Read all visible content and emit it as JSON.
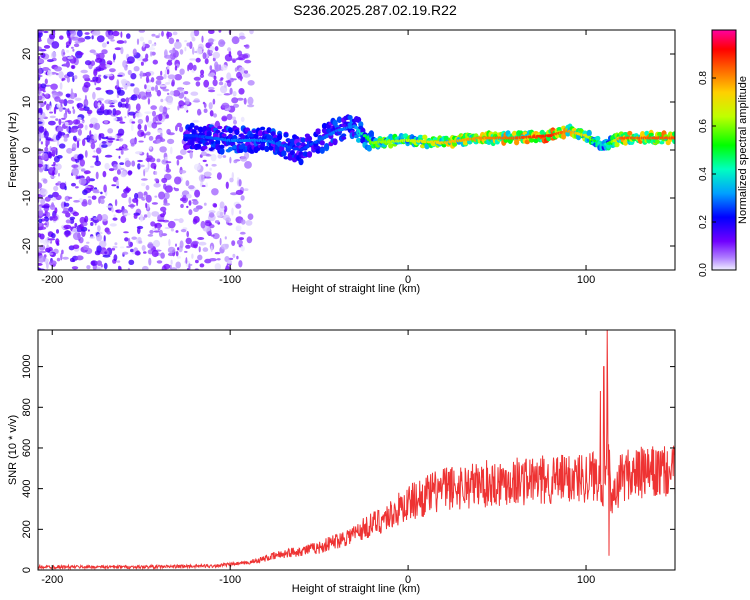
{
  "title": "S236.2025.287.02.19.R22",
  "chart_data": [
    {
      "type": "heatmap",
      "name": "spectrogram",
      "xlabel": "Height of straight line (km)",
      "ylabel": "Frequency (Hz)",
      "xlim": [
        -208,
        150
      ],
      "ylim": [
        -25,
        25
      ],
      "xticks": [
        -200,
        -100,
        0,
        100
      ],
      "xtick_labels": [
        "-200",
        "-100",
        "0",
        "100"
      ],
      "yticks": [
        -20,
        -10,
        0,
        10,
        20
      ],
      "ytick_labels": [
        "-20",
        "-10",
        "0",
        "10",
        "20"
      ],
      "colorbar": {
        "label": "Normalized spectral amplitude",
        "range": [
          0,
          1
        ],
        "ticks": [
          0.0,
          0.2,
          0.4,
          0.6,
          0.8
        ],
        "tick_labels": [
          "0.0",
          "0.2",
          "0.4",
          "0.6",
          "0.8"
        ],
        "colors": [
          "#f0f0ff",
          "#8000ff",
          "#0000ff",
          "#00c0ff",
          "#00ff80",
          "#80ff00",
          "#ffff00",
          "#ff8000",
          "#ff0000",
          "#ff0080"
        ]
      },
      "signal_track": {
        "x": [
          -120,
          -100,
          -80,
          -60,
          -40,
          -30,
          -20,
          0,
          20,
          40,
          60,
          80,
          90,
          100,
          110,
          120,
          150
        ],
        "freq": [
          3,
          2,
          2,
          0,
          4,
          5,
          1.5,
          2,
          1.5,
          2.5,
          2.5,
          3,
          4,
          3,
          1,
          2.5,
          2.5
        ],
        "amplitude": [
          0.25,
          0.3,
          0.3,
          0.25,
          0.3,
          0.3,
          0.6,
          0.65,
          0.75,
          0.8,
          0.85,
          0.9,
          0.8,
          0.7,
          0.35,
          0.85,
          0.85
        ]
      }
    },
    {
      "type": "line",
      "name": "snr",
      "xlabel": "Height of straight line (km)",
      "ylabel": "SNR (10 * v/v)",
      "xlim": [
        -208,
        150
      ],
      "ylim": [
        0,
        1180
      ],
      "xticks": [
        -200,
        -100,
        0,
        100
      ],
      "xtick_labels": [
        "-200",
        "-100",
        "0",
        "100"
      ],
      "yticks": [
        0,
        200,
        400,
        600,
        800,
        1000
      ],
      "ytick_labels": [
        "0",
        "200",
        "400",
        "600",
        "800",
        "1000"
      ],
      "color": "#ee3333",
      "trend": {
        "x": [
          -208,
          -150,
          -110,
          -90,
          -70,
          -50,
          -30,
          -10,
          0,
          20,
          40,
          60,
          80,
          100,
          108,
          110,
          112,
          114,
          120,
          150
        ],
        "y": [
          15,
          15,
          20,
          35,
          80,
          110,
          180,
          270,
          330,
          400,
          420,
          440,
          440,
          460,
          470,
          400,
          700,
          300,
          470,
          480
        ]
      },
      "peaks": [
        {
          "x": 112,
          "y": 1180
        },
        {
          "x": 110,
          "y": 1000
        },
        {
          "x": 108,
          "y": 880
        },
        {
          "x": 113,
          "y": 70
        }
      ]
    }
  ]
}
